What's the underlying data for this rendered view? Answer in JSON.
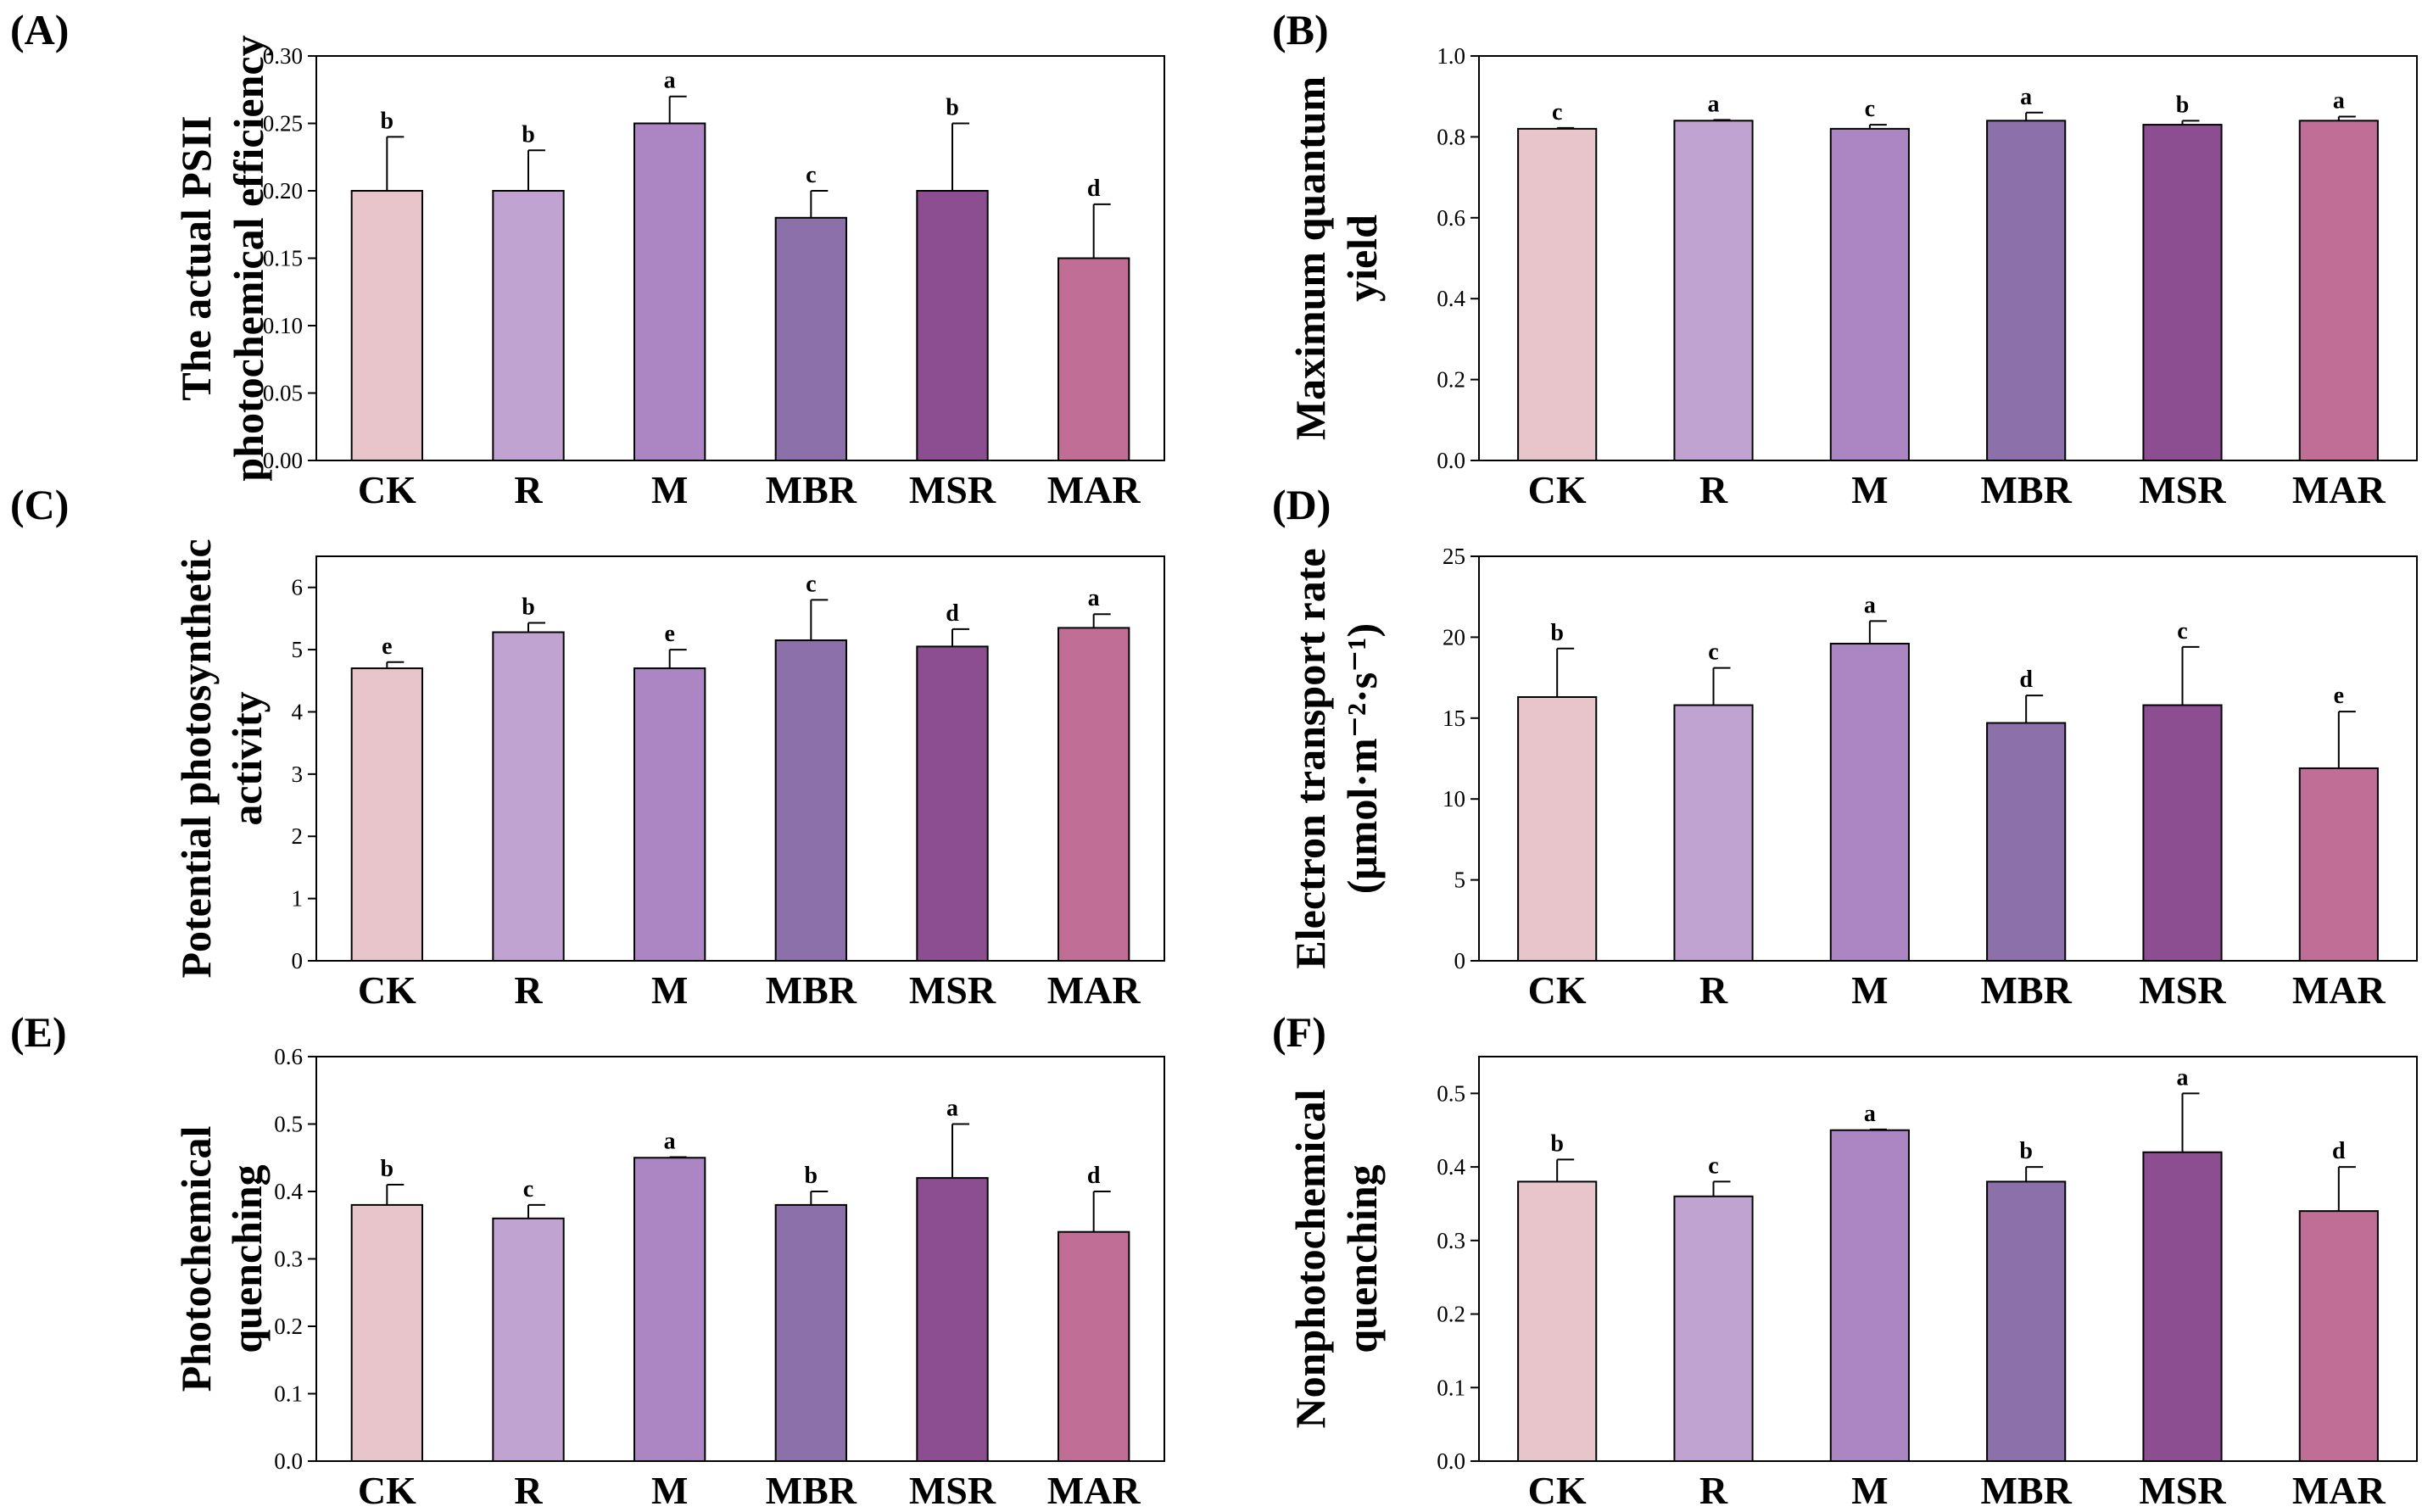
{
  "colors": {
    "CK": "#e8c4cb",
    "R": "#c1a3d1",
    "M": "#ab86c3",
    "MBR": "#8b70a9",
    "MSR": "#8c4d91",
    "MAR": "#c06e95",
    "axis": "#000000"
  },
  "chart_data": [
    {
      "panel_label": "(A)",
      "type": "bar",
      "ylabel": [
        "The actual PSII",
        "photochemical efficiency"
      ],
      "ylim": [
        0,
        0.3
      ],
      "yticks": [
        "0.00",
        "0.05",
        "0.10",
        "0.15",
        "0.20",
        "0.25",
        "0.30"
      ],
      "categories": [
        "CK",
        "R",
        "M",
        "MBR",
        "MSR",
        "MAR"
      ],
      "values": [
        0.2,
        0.2,
        0.25,
        0.18,
        0.2,
        0.15
      ],
      "errors": [
        0.04,
        0.03,
        0.02,
        0.02,
        0.05,
        0.04
      ],
      "letters": [
        "b",
        "b",
        "a",
        "c",
        "b",
        "d"
      ]
    },
    {
      "panel_label": "(B)",
      "type": "bar",
      "ylabel": [
        "Maximum quantum",
        "yield"
      ],
      "ylim": [
        0,
        1.0
      ],
      "yticks": [
        "0.0",
        "0.2",
        "0.4",
        "0.6",
        "0.8",
        "1.0"
      ],
      "categories": [
        "CK",
        "R",
        "M",
        "MBR",
        "MSR",
        "MAR"
      ],
      "values": [
        0.82,
        0.84,
        0.82,
        0.84,
        0.83,
        0.84
      ],
      "errors": [
        0.002,
        0.002,
        0.01,
        0.02,
        0.01,
        0.01
      ],
      "letters": [
        "c",
        "a",
        "c",
        "a",
        "b",
        "a"
      ]
    },
    {
      "panel_label": "(C)",
      "type": "bar",
      "ylabel": [
        "Potential photosynthetic",
        "activity"
      ],
      "ylim": [
        0,
        6.5
      ],
      "yticks": [
        "0",
        "1",
        "2",
        "3",
        "4",
        "5",
        "6"
      ],
      "categories": [
        "CK",
        "R",
        "M",
        "MBR",
        "MSR",
        "MAR"
      ],
      "values": [
        4.7,
        5.28,
        4.7,
        5.15,
        5.05,
        5.35
      ],
      "errors": [
        0.1,
        0.15,
        0.3,
        0.65,
        0.28,
        0.22
      ],
      "letters": [
        "e",
        "b",
        "e",
        "c",
        "d",
        "a"
      ]
    },
    {
      "panel_label": "(D)",
      "type": "bar",
      "ylabel": [
        "Electron transport rate",
        "(μmol·m⁻²·s⁻¹)"
      ],
      "ylim": [
        0,
        25
      ],
      "yticks": [
        "0",
        "5",
        "10",
        "15",
        "20",
        "25"
      ],
      "categories": [
        "CK",
        "R",
        "M",
        "MBR",
        "MSR",
        "MAR"
      ],
      "values": [
        16.3,
        15.8,
        19.6,
        14.7,
        15.8,
        11.9
      ],
      "errors": [
        3.0,
        2.3,
        1.4,
        1.7,
        3.6,
        3.5
      ],
      "letters": [
        "b",
        "c",
        "a",
        "d",
        "c",
        "e"
      ]
    },
    {
      "panel_label": "(E)",
      "type": "bar",
      "ylabel": [
        "Photochemical",
        "quenching"
      ],
      "ylim": [
        0,
        0.6
      ],
      "yticks": [
        "0.0",
        "0.1",
        "0.2",
        "0.3",
        "0.4",
        "0.5",
        "0.6"
      ],
      "categories": [
        "CK",
        "R",
        "M",
        "MBR",
        "MSR",
        "MAR"
      ],
      "values": [
        0.38,
        0.36,
        0.45,
        0.38,
        0.42,
        0.34
      ],
      "errors": [
        0.03,
        0.02,
        0.001,
        0.02,
        0.08,
        0.06
      ],
      "letters": [
        "b",
        "c",
        "a",
        "b",
        "a",
        "d"
      ]
    },
    {
      "panel_label": "(F)",
      "type": "bar",
      "ylabel": [
        "Nonphotochemical",
        "quenching"
      ],
      "ylim": [
        0,
        0.55
      ],
      "yticks": [
        "0.0",
        "0.1",
        "0.2",
        "0.3",
        "0.4",
        "0.5"
      ],
      "categories": [
        "CK",
        "R",
        "M",
        "MBR",
        "MSR",
        "MAR"
      ],
      "values": [
        0.38,
        0.36,
        0.45,
        0.38,
        0.42,
        0.34
      ],
      "errors": [
        0.03,
        0.02,
        0.001,
        0.02,
        0.08,
        0.06
      ],
      "letters": [
        "b",
        "c",
        "a",
        "b",
        "a",
        "d"
      ]
    }
  ]
}
